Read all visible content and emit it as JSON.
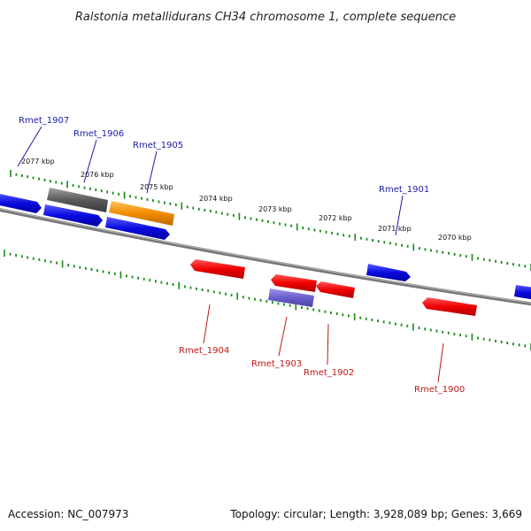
{
  "title": "Ralstonia metallidurans CH34 chromosome 1, complete sequence",
  "footer": {
    "accession": "Accession: NC_007973",
    "topology": "Topology: circular; Length: 3,928,089 bp; Genes: 3,669"
  },
  "ruler": {
    "ticks": [
      "2077 kbp",
      "2076 kbp",
      "2075 kbp",
      "2074 kbp",
      "2073 kbp",
      "2072 kbp",
      "2071 kbp",
      "2070 kbp"
    ]
  },
  "colors": {
    "forward": "#1010e0",
    "reverse": "#ee1111",
    "gray": "#6a6a6a",
    "orange": "#f08c00",
    "lavender": "#6a5fcc",
    "backbone": "#777777",
    "tick": "#1a8a1a"
  },
  "genes": {
    "top": [
      {
        "id": "Rmet_1907",
        "label": "Rmet_1907"
      },
      {
        "id": "Rmet_1906",
        "label": "Rmet_1906"
      },
      {
        "id": "Rmet_1905",
        "label": "Rmet_1905"
      },
      {
        "id": "Rmet_1901",
        "label": "Rmet_1901"
      }
    ],
    "bottom": [
      {
        "id": "Rmet_1904",
        "label": "Rmet_1904"
      },
      {
        "id": "Rmet_1903",
        "label": "Rmet_1903"
      },
      {
        "id": "Rmet_1902",
        "label": "Rmet_1902"
      },
      {
        "id": "Rmet_1900",
        "label": "Rmet_1900"
      }
    ]
  }
}
